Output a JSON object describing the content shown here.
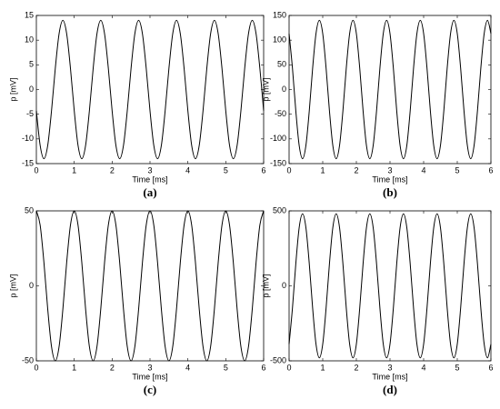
{
  "chart_data": [
    {
      "type": "line",
      "caption": "(a)",
      "x_label": "Time [ms]",
      "y_label": "p [mV]",
      "x": [
        0,
        0.1,
        0.2,
        0.3,
        0.4,
        0.5,
        0.6,
        0.7,
        0.8,
        0.9,
        1,
        1.1,
        1.2,
        1.3,
        1.4,
        1.5,
        1.6,
        1.7,
        1.8,
        1.9,
        2,
        2.1,
        2.2,
        2.3,
        2.4,
        2.5,
        2.6,
        2.7,
        2.8,
        2.9,
        3,
        3.1,
        3.2,
        3.3,
        3.4,
        3.5,
        3.6,
        3.7,
        3.8,
        3.9,
        4,
        4.1,
        4.2,
        4.3,
        4.4,
        4.5,
        4.6,
        4.7,
        4.8,
        4.9,
        5,
        5.1,
        5.2,
        5.3,
        5.4,
        5.5,
        5.6,
        5.7,
        5.8,
        5.9,
        6
      ],
      "series": [
        {
          "color": "#000000",
          "values": [
            -4.3,
            -11.3,
            -14,
            -11.3,
            -4.3,
            4.3,
            11.3,
            14,
            11.3,
            4.3,
            -4.3,
            -11.3,
            -14,
            -11.3,
            -4.3,
            4.3,
            11.3,
            14,
            11.3,
            4.3,
            -4.3,
            -11.3,
            -14,
            -11.3,
            -4.3,
            4.3,
            11.3,
            14,
            11.3,
            4.3,
            -4.3,
            -11.3,
            -14,
            -11.3,
            -4.3,
            4.3,
            11.3,
            14,
            11.3,
            4.3,
            -4.3,
            -11.3,
            -14,
            -11.3,
            -4.3,
            4.3,
            11.3,
            14,
            11.3,
            4.3,
            -4.3,
            -11.3,
            -14,
            -11.3,
            -4.3,
            4.3,
            11.3,
            14,
            11.3,
            4.3,
            -4.3
          ]
        }
      ],
      "xlim": [
        0,
        6
      ],
      "xticks": [
        0,
        1,
        2,
        3,
        4,
        5,
        6
      ],
      "ylim": [
        -15,
        15
      ],
      "yticks": [
        -15,
        -10,
        -5,
        0,
        5,
        10,
        15
      ]
    },
    {
      "type": "line",
      "caption": "(b)",
      "x_label": "Time [ms]",
      "y_label": "p [mV]",
      "x": [
        0,
        0.1,
        0.2,
        0.3,
        0.4,
        0.5,
        0.6,
        0.7,
        0.8,
        0.9,
        1,
        1.1,
        1.2,
        1.3,
        1.4,
        1.5,
        1.6,
        1.7,
        1.8,
        1.9,
        2,
        2.1,
        2.2,
        2.3,
        2.4,
        2.5,
        2.6,
        2.7,
        2.8,
        2.9,
        3,
        3.1,
        3.2,
        3.3,
        3.4,
        3.5,
        3.6,
        3.7,
        3.8,
        3.9,
        4,
        4.1,
        4.2,
        4.3,
        4.4,
        4.5,
        4.6,
        4.7,
        4.8,
        4.9,
        5,
        5.1,
        5.2,
        5.3,
        5.4,
        5.5,
        5.6,
        5.7,
        5.8,
        5.9,
        6
      ],
      "series": [
        {
          "color": "#000000",
          "values": [
            113.3,
            43.3,
            -43.3,
            -113.3,
            -140,
            -113.3,
            -43.3,
            43.3,
            113.3,
            140,
            113.3,
            43.3,
            -43.3,
            -113.3,
            -140,
            -113.3,
            -43.3,
            43.3,
            113.3,
            140,
            113.3,
            43.3,
            -43.3,
            -113.3,
            -140,
            -113.3,
            -43.3,
            43.3,
            113.3,
            140,
            113.3,
            43.3,
            -43.3,
            -113.3,
            -140,
            -113.3,
            -43.3,
            43.3,
            113.3,
            140,
            113.3,
            43.3,
            -43.3,
            -113.3,
            -140,
            -113.3,
            -43.3,
            43.3,
            113.3,
            140,
            113.3,
            43.3,
            -43.3,
            -113.3,
            -140,
            -113.3,
            -43.3,
            43.3,
            113.3,
            140,
            113.3
          ]
        }
      ],
      "xlim": [
        0,
        6
      ],
      "xticks": [
        0,
        1,
        2,
        3,
        4,
        5,
        6
      ],
      "ylim": [
        -150,
        150
      ],
      "yticks": [
        -150,
        -100,
        -50,
        0,
        50,
        100,
        150
      ]
    },
    {
      "type": "line",
      "caption": "(c)",
      "x_label": "Time [ms]",
      "y_label": "p [mV]",
      "x": [
        0,
        0.1,
        0.2,
        0.3,
        0.4,
        0.5,
        0.6,
        0.7,
        0.8,
        0.9,
        1,
        1.1,
        1.2,
        1.3,
        1.4,
        1.5,
        1.6,
        1.7,
        1.8,
        1.9,
        2,
        2.1,
        2.2,
        2.3,
        2.4,
        2.5,
        2.6,
        2.7,
        2.8,
        2.9,
        3,
        3.1,
        3.2,
        3.3,
        3.4,
        3.5,
        3.6,
        3.7,
        3.8,
        3.9,
        4,
        4.1,
        4.2,
        4.3,
        4.4,
        4.5,
        4.6,
        4.7,
        4.8,
        4.9,
        5,
        5.1,
        5.2,
        5.3,
        5.4,
        5.5,
        5.6,
        5.7,
        5.8,
        5.9,
        6
      ],
      "series": [
        {
          "color": "#000000",
          "values": [
            50,
            40.5,
            15.5,
            -15.5,
            -40.5,
            -50,
            -40.5,
            -15.5,
            15.5,
            40.5,
            50,
            40.5,
            15.5,
            -15.5,
            -40.5,
            -50,
            -40.5,
            -15.5,
            15.5,
            40.5,
            50,
            40.5,
            15.5,
            -15.5,
            -40.5,
            -50,
            -40.5,
            -15.5,
            15.5,
            40.5,
            50,
            40.5,
            15.5,
            -15.5,
            -40.5,
            -50,
            -40.5,
            -15.5,
            15.5,
            40.5,
            50,
            40.5,
            15.5,
            -15.5,
            -40.5,
            -50,
            -40.5,
            -15.5,
            15.5,
            40.5,
            50,
            40.5,
            15.5,
            -15.5,
            -40.5,
            -50,
            -40.5,
            -15.5,
            15.5,
            40.5,
            50
          ]
        }
      ],
      "xlim": [
        0,
        6
      ],
      "xticks": [
        0,
        1,
        2,
        3,
        4,
        5,
        6
      ],
      "ylim": [
        -50,
        50
      ],
      "yticks": [
        -50,
        0,
        50
      ]
    },
    {
      "type": "line",
      "caption": "(d)",
      "x_label": "Time [ms]",
      "y_label": "p [mV]",
      "x": [
        0,
        0.1,
        0.2,
        0.3,
        0.4,
        0.5,
        0.6,
        0.7,
        0.8,
        0.9,
        1,
        1.1,
        1.2,
        1.3,
        1.4,
        1.5,
        1.6,
        1.7,
        1.8,
        1.9,
        2,
        2.1,
        2.2,
        2.3,
        2.4,
        2.5,
        2.6,
        2.7,
        2.8,
        2.9,
        3,
        3.1,
        3.2,
        3.3,
        3.4,
        3.5,
        3.6,
        3.7,
        3.8,
        3.9,
        4,
        4.1,
        4.2,
        4.3,
        4.4,
        4.5,
        4.6,
        4.7,
        4.8,
        4.9,
        5,
        5.1,
        5.2,
        5.3,
        5.4,
        5.5,
        5.6,
        5.7,
        5.8,
        5.9,
        6
      ],
      "series": [
        {
          "color": "#000000",
          "values": [
            -388.3,
            -148.3,
            148.3,
            388.3,
            480,
            388.3,
            148.3,
            -148.3,
            -388.3,
            -480,
            -388.3,
            -148.3,
            148.3,
            388.3,
            480,
            388.3,
            148.3,
            -148.3,
            -388.3,
            -480,
            -388.3,
            -148.3,
            148.3,
            388.3,
            480,
            388.3,
            148.3,
            -148.3,
            -388.3,
            -480,
            -388.3,
            -148.3,
            148.3,
            388.3,
            480,
            388.3,
            148.3,
            -148.3,
            -388.3,
            -480,
            -388.3,
            -148.3,
            148.3,
            388.3,
            480,
            388.3,
            148.3,
            -148.3,
            -388.3,
            -480,
            -388.3,
            -148.3,
            148.3,
            388.3,
            480,
            388.3,
            148.3,
            -148.3,
            -388.3,
            -480,
            -388.3
          ]
        }
      ],
      "xlim": [
        0,
        6
      ],
      "xticks": [
        0,
        1,
        2,
        3,
        4,
        5,
        6
      ],
      "ylim": [
        -500,
        500
      ],
      "yticks": [
        -500,
        0,
        500
      ]
    }
  ]
}
